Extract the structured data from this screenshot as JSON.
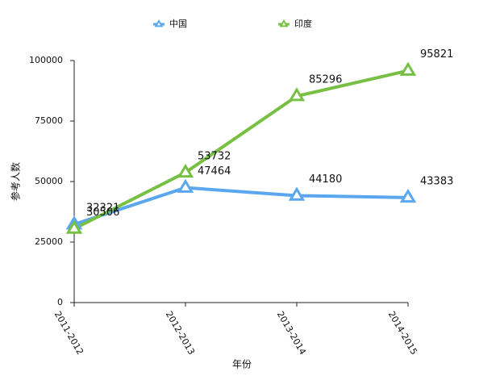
{
  "chart_data": {
    "type": "line",
    "categories": [
      "2011-2012",
      "2012-2013",
      "2013-2014",
      "2014-2015"
    ],
    "series": [
      {
        "name": "中国",
        "color": "#5aa7ef",
        "values": [
          32321,
          47464,
          44180,
          43383
        ]
      },
      {
        "name": "印度",
        "color": "#78c043",
        "values": [
          30506,
          53732,
          85296,
          95821
        ]
      }
    ],
    "ylim": [
      0,
      100000
    ],
    "yticks": [
      0,
      25000,
      50000,
      75000,
      100000
    ],
    "x_label": "年份",
    "y_label": "参考人数",
    "legend": "top",
    "grid": false
  }
}
